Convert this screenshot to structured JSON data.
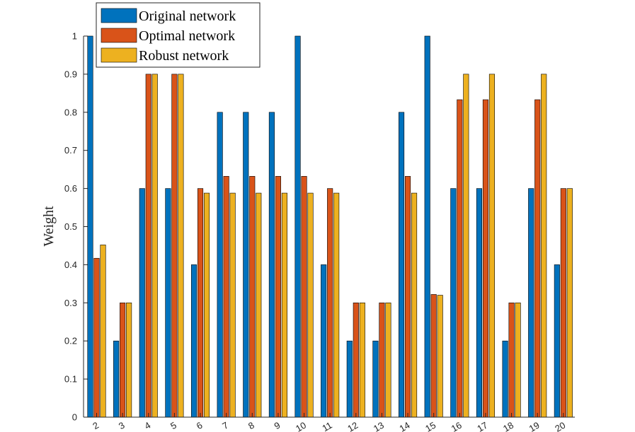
{
  "chart_data": {
    "type": "bar",
    "ylabel": "Weight",
    "ylim": [
      0,
      1
    ],
    "yticks": [
      "0",
      "0.1",
      "0.2",
      "0.3",
      "0.4",
      "0.5",
      "0.6",
      "0.7",
      "0.8",
      "0.9",
      "1"
    ],
    "categories": [
      "2",
      "3",
      "4",
      "5",
      "6",
      "7",
      "8",
      "9",
      "10",
      "11",
      "12",
      "13",
      "14",
      "15",
      "16",
      "17",
      "18",
      "19",
      "20"
    ],
    "series": [
      {
        "name": "Original network",
        "color": "#0072BD",
        "values": [
          1.0,
          0.2,
          0.6,
          0.6,
          0.4,
          0.8,
          0.8,
          0.8,
          1.0,
          0.4,
          0.2,
          0.2,
          0.8,
          1.0,
          0.6,
          0.6,
          0.2,
          0.6,
          0.4
        ]
      },
      {
        "name": "Optimal network",
        "color": "#D95319",
        "values": [
          0.417,
          0.3,
          0.9,
          0.9,
          0.6,
          0.632,
          0.632,
          0.632,
          0.632,
          0.6,
          0.3,
          0.3,
          0.632,
          0.322,
          0.833,
          0.833,
          0.3,
          0.833,
          0.6
        ]
      },
      {
        "name": "Robust network",
        "color": "#EDB120",
        "values": [
          0.452,
          0.3,
          0.9,
          0.9,
          0.588,
          0.588,
          0.588,
          0.588,
          0.588,
          0.588,
          0.3,
          0.3,
          0.588,
          0.32,
          0.9,
          0.9,
          0.3,
          0.9,
          0.6
        ]
      }
    ],
    "grid": false,
    "legend_position": "top-left"
  }
}
